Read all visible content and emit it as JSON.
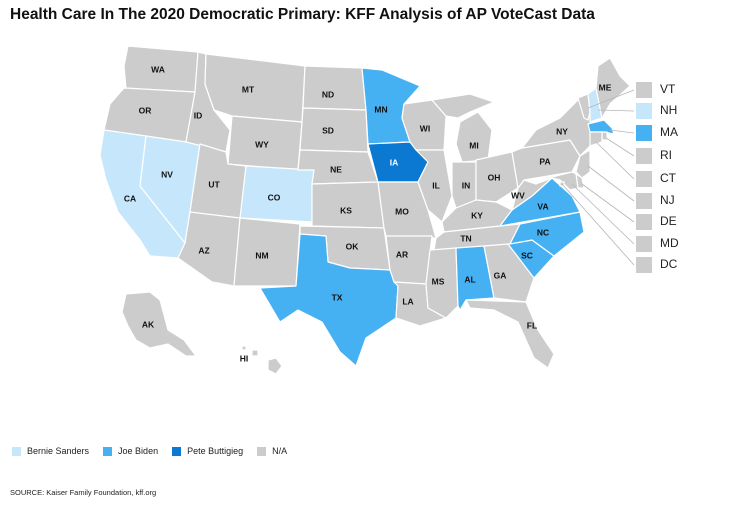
{
  "title": "Health Care In The 2020 Democratic Primary: KFF Analysis of AP VoteCast Data",
  "colors": {
    "Bernie Sanders": "#c6e7fb",
    "Joe Biden": "#45b0f2",
    "Pete Buttigieg": "#0b78d1",
    "N/A": "#cccccc"
  },
  "legend": [
    {
      "label": "Bernie Sanders",
      "key": "Bernie Sanders"
    },
    {
      "label": "Joe Biden",
      "key": "Joe Biden"
    },
    {
      "label": "Pete Buttigieg",
      "key": "Pete Buttigieg"
    },
    {
      "label": "N/A",
      "key": "N/A"
    }
  ],
  "states": [
    {
      "abbr": "WA",
      "value": "N/A"
    },
    {
      "abbr": "OR",
      "value": "N/A"
    },
    {
      "abbr": "CA",
      "value": "Bernie Sanders"
    },
    {
      "abbr": "NV",
      "value": "Bernie Sanders"
    },
    {
      "abbr": "ID",
      "value": "N/A"
    },
    {
      "abbr": "MT",
      "value": "N/A"
    },
    {
      "abbr": "WY",
      "value": "N/A"
    },
    {
      "abbr": "UT",
      "value": "N/A"
    },
    {
      "abbr": "CO",
      "value": "Bernie Sanders"
    },
    {
      "abbr": "AZ",
      "value": "N/A"
    },
    {
      "abbr": "NM",
      "value": "N/A"
    },
    {
      "abbr": "ND",
      "value": "N/A"
    },
    {
      "abbr": "SD",
      "value": "N/A"
    },
    {
      "abbr": "NE",
      "value": "N/A"
    },
    {
      "abbr": "KS",
      "value": "N/A"
    },
    {
      "abbr": "OK",
      "value": "N/A"
    },
    {
      "abbr": "TX",
      "value": "Joe Biden"
    },
    {
      "abbr": "MN",
      "value": "Joe Biden"
    },
    {
      "abbr": "IA",
      "value": "Pete Buttigieg"
    },
    {
      "abbr": "MO",
      "value": "N/A"
    },
    {
      "abbr": "AR",
      "value": "N/A"
    },
    {
      "abbr": "LA",
      "value": "N/A"
    },
    {
      "abbr": "WI",
      "value": "N/A"
    },
    {
      "abbr": "IL",
      "value": "N/A"
    },
    {
      "abbr": "MI",
      "value": "N/A"
    },
    {
      "abbr": "IN",
      "value": "N/A"
    },
    {
      "abbr": "OH",
      "value": "N/A"
    },
    {
      "abbr": "KY",
      "value": "N/A"
    },
    {
      "abbr": "TN",
      "value": "N/A"
    },
    {
      "abbr": "MS",
      "value": "N/A"
    },
    {
      "abbr": "AL",
      "value": "Joe Biden"
    },
    {
      "abbr": "GA",
      "value": "N/A"
    },
    {
      "abbr": "FL",
      "value": "N/A"
    },
    {
      "abbr": "SC",
      "value": "Joe Biden"
    },
    {
      "abbr": "NC",
      "value": "Joe Biden"
    },
    {
      "abbr": "VA",
      "value": "Joe Biden"
    },
    {
      "abbr": "WV",
      "value": "N/A"
    },
    {
      "abbr": "PA",
      "value": "N/A"
    },
    {
      "abbr": "NY",
      "value": "N/A"
    },
    {
      "abbr": "ME",
      "value": "N/A"
    },
    {
      "abbr": "AK",
      "value": "N/A"
    },
    {
      "abbr": "HI",
      "value": "N/A"
    }
  ],
  "small_states": [
    {
      "abbr": "VT",
      "value": "N/A"
    },
    {
      "abbr": "NH",
      "value": "Bernie Sanders"
    },
    {
      "abbr": "MA",
      "value": "Joe Biden"
    },
    {
      "abbr": "RI",
      "value": "N/A"
    },
    {
      "abbr": "CT",
      "value": "N/A"
    },
    {
      "abbr": "NJ",
      "value": "N/A"
    },
    {
      "abbr": "DE",
      "value": "N/A"
    },
    {
      "abbr": "MD",
      "value": "N/A"
    },
    {
      "abbr": "DC",
      "value": "N/A"
    }
  ],
  "source": "SOURCE: Kaiser Family Foundation, kff.org"
}
